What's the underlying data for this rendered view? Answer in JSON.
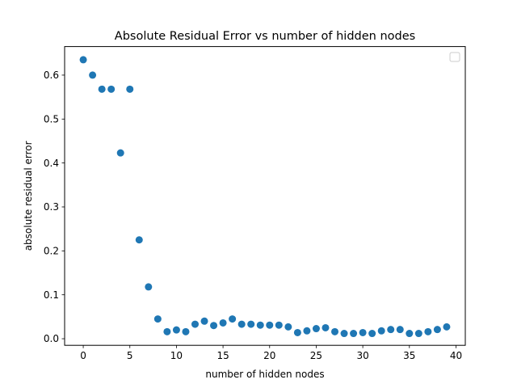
{
  "chart_data": {
    "type": "scatter",
    "title": "Absolute Residual Error vs number of hidden nodes",
    "xlabel": "number of hidden nodes",
    "ylabel": "absolute residual error",
    "xlim": [
      -2,
      41
    ],
    "ylim": [
      -0.015,
      0.665
    ],
    "xticks": [
      0,
      5,
      10,
      15,
      20,
      25,
      30,
      35,
      40
    ],
    "yticks": [
      0.0,
      0.1,
      0.2,
      0.3,
      0.4,
      0.5,
      0.6
    ],
    "ytick_labels": [
      "0.0",
      "0.1",
      "0.2",
      "0.3",
      "0.4",
      "0.5",
      "0.6"
    ],
    "grid": false,
    "legend": {
      "placement": "top-right",
      "entries": []
    },
    "marker_color": "#1f77b4",
    "series": [
      {
        "x": [
          0,
          1,
          2,
          3,
          4,
          5,
          6,
          7,
          8,
          9,
          10,
          11,
          12,
          13,
          14,
          15,
          16,
          17,
          18,
          19,
          20,
          21,
          22,
          23,
          24,
          25,
          26,
          27,
          28,
          29,
          30,
          31,
          32,
          33,
          34,
          35,
          36,
          37,
          38,
          39
        ],
        "y": [
          0.635,
          0.6,
          0.568,
          0.568,
          0.423,
          0.568,
          0.225,
          0.118,
          0.045,
          0.016,
          0.02,
          0.016,
          0.033,
          0.04,
          0.03,
          0.036,
          0.045,
          0.033,
          0.033,
          0.031,
          0.031,
          0.031,
          0.027,
          0.014,
          0.018,
          0.023,
          0.025,
          0.016,
          0.012,
          0.012,
          0.014,
          0.012,
          0.018,
          0.021,
          0.021,
          0.012,
          0.012,
          0.016,
          0.021,
          0.027
        ]
      }
    ]
  }
}
